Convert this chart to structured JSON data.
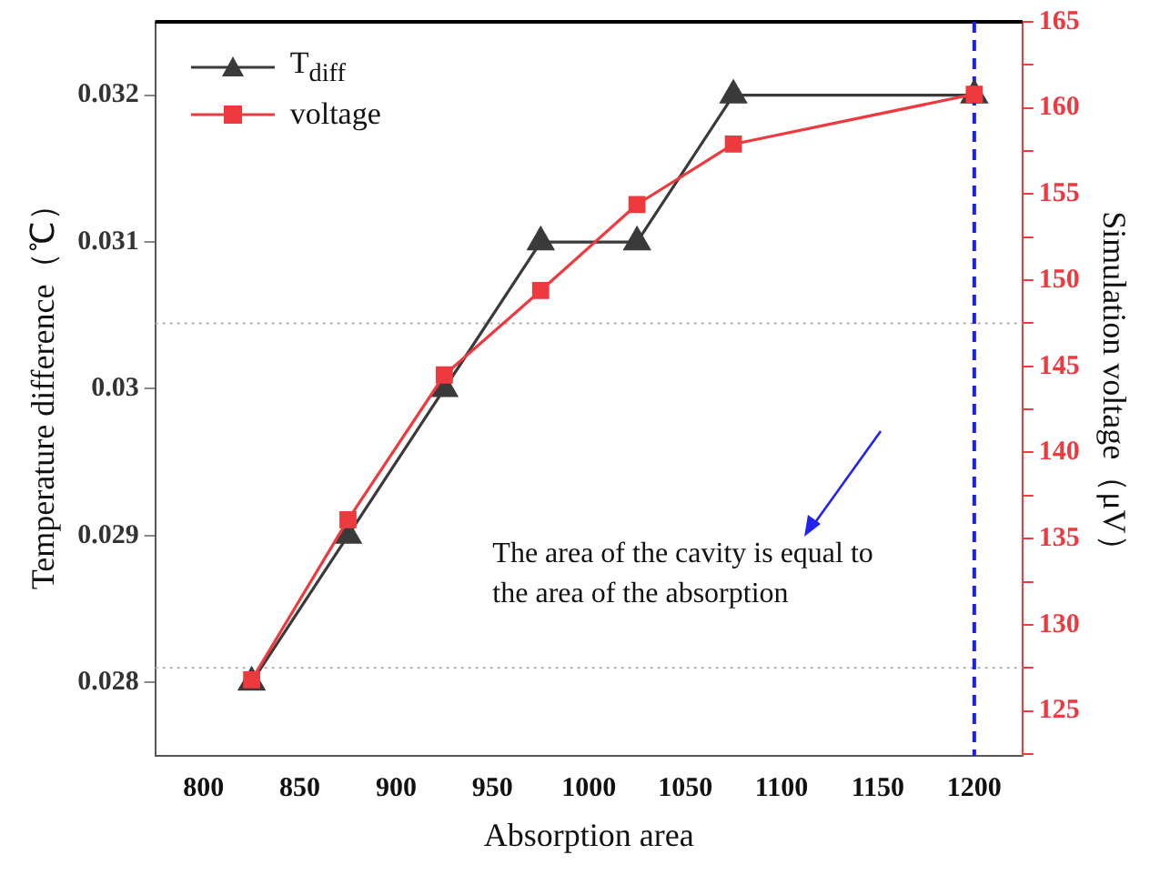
{
  "chart_data": {
    "type": "line",
    "xlabel": "Absorption area",
    "ylabel": "Temperature difference（℃）",
    "y2label": "Simulation voltage（μV）",
    "x": [
      825,
      875,
      925,
      975,
      1025,
      1075,
      1200
    ],
    "series": [
      {
        "name": "T$_{diff}$",
        "color": "#3a3a3a",
        "marker": "triangle",
        "values": [
          0.028,
          0.029,
          0.03,
          0.031,
          0.031,
          0.032,
          0.032
        ]
      },
      {
        "name": "voltage",
        "color": "#ee3a3f",
        "marker": "square",
        "axis": "y2",
        "values": [
          126.8,
          136.1,
          144.5,
          149.4,
          154.4,
          157.9,
          160.8
        ]
      }
    ],
    "xlim": [
      775,
      1225
    ],
    "xticks": [
      800,
      850,
      900,
      950,
      1000,
      1050,
      1100,
      1150,
      1200
    ],
    "ylim": [
      0.0275,
      0.0325
    ],
    "yticks": [
      0.028,
      0.029,
      0.03,
      0.031,
      0.032
    ],
    "y2lim": [
      122.4,
      165
    ],
    "y2ticks": [
      {
        "value": 122.5,
        "label": null
      },
      125,
      {
        "value": 127.5,
        "label": null
      },
      130,
      {
        "value": 132.5,
        "label": null
      },
      135,
      {
        "value": 137.5,
        "label": null
      },
      140,
      {
        "value": 142.5,
        "label": null
      },
      145,
      {
        "value": 147.5,
        "label": null
      },
      150,
      {
        "value": 152.5,
        "label": null
      },
      155,
      {
        "value": 157.5,
        "label": null
      },
      160,
      {
        "value": 162.5,
        "label": null
      },
      165
    ],
    "ref_lines": [
      {
        "axis": "y2",
        "value": 147.5,
        "color": "#b0b0b0",
        "line_style": "dotted"
      },
      {
        "axis": "y2",
        "value": 127.5,
        "color": "#b0b0b0",
        "line_style": "dotted"
      },
      {
        "axis": "x",
        "value": 1200,
        "color": "#1a1aff",
        "line_style": "dashed"
      }
    ],
    "annotations": [
      "The area of the cavity is equal to the area of the absorption"
    ],
    "legend": "top left",
    "line_style": "solid"
  }
}
